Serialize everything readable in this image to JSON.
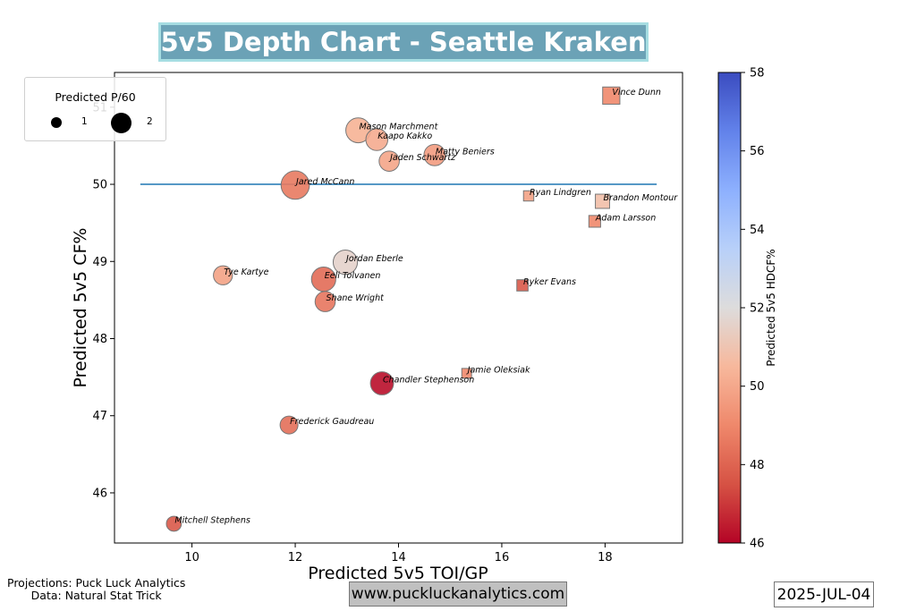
{
  "title": "5v5 Depth Chart - Seattle Kraken",
  "legend": {
    "title": "Predicted P/60",
    "entries": [
      {
        "label": "1",
        "value": 1
      },
      {
        "label": "2",
        "value": 2
      }
    ]
  },
  "footer": {
    "credit_line1": "Projections: Puck Luck Analytics",
    "credit_line2": "Data: Natural Stat Trick",
    "website": "www.puckluckanalytics.com",
    "date": "2025-JUL-04"
  },
  "chart_data": {
    "type": "scatter",
    "xlabel": "Predicted 5v5 TOI/GP",
    "ylabel": "Predicted 5v5 CF%",
    "colorbar_label": "Predicted 5v5 HDCF%",
    "xlim": [
      8.5,
      19.5
    ],
    "ylim": [
      45.35,
      51.45
    ],
    "xticks": [
      10,
      12,
      14,
      16,
      18
    ],
    "yticks": [
      46,
      47,
      48,
      49,
      50,
      51
    ],
    "colorbar_range": [
      46,
      58
    ],
    "colorbar_ticks": [
      46,
      48,
      50,
      52,
      54,
      56,
      58
    ],
    "colormap": "coolwarm",
    "reference_line": {
      "y": 50,
      "x_start": 9,
      "x_end": 19,
      "color": "#1f77b4"
    },
    "marker_legend": {
      "circle": "forward",
      "square": "defense"
    },
    "points": [
      {
        "name": "Vince Dunn",
        "x": 18.12,
        "y": 51.15,
        "hdcf": 49.0,
        "p60": 1.2,
        "marker": "square"
      },
      {
        "name": "Mason Marchment",
        "x": 13.22,
        "y": 50.7,
        "hdcf": 50.3,
        "p60": 1.6,
        "marker": "circle"
      },
      {
        "name": "Kaapo Kakko",
        "x": 13.58,
        "y": 50.58,
        "hdcf": 50.1,
        "p60": 1.35,
        "marker": "circle"
      },
      {
        "name": "Matty Beniers",
        "x": 14.7,
        "y": 50.38,
        "hdcf": 49.6,
        "p60": 1.3,
        "marker": "circle"
      },
      {
        "name": "Jaden Schwartz",
        "x": 13.82,
        "y": 50.3,
        "hdcf": 49.9,
        "p60": 1.2,
        "marker": "circle"
      },
      {
        "name": "Jared McCann",
        "x": 12.0,
        "y": 49.99,
        "hdcf": 48.6,
        "p60": 1.9,
        "marker": "circle"
      },
      {
        "name": "Ryan Lindgren",
        "x": 16.52,
        "y": 49.85,
        "hdcf": 49.8,
        "p60": 0.5,
        "marker": "square"
      },
      {
        "name": "Brandon Montour",
        "x": 17.95,
        "y": 49.78,
        "hdcf": 50.8,
        "p60": 0.9,
        "marker": "square"
      },
      {
        "name": "Adam Larsson",
        "x": 17.8,
        "y": 49.52,
        "hdcf": 49.0,
        "p60": 0.65,
        "marker": "square"
      },
      {
        "name": "Jordan Eberle",
        "x": 12.97,
        "y": 48.99,
        "hdcf": 51.6,
        "p60": 1.55,
        "marker": "circle"
      },
      {
        "name": "Tye Kartye",
        "x": 10.6,
        "y": 48.82,
        "hdcf": 49.8,
        "p60": 1.1,
        "marker": "circle"
      },
      {
        "name": "Eeli Tolvanen",
        "x": 12.55,
        "y": 48.77,
        "hdcf": 48.2,
        "p60": 1.55,
        "marker": "circle"
      },
      {
        "name": "Ryker Evans",
        "x": 16.4,
        "y": 48.69,
        "hdcf": 47.7,
        "p60": 0.6,
        "marker": "square"
      },
      {
        "name": "Shane Wright",
        "x": 12.58,
        "y": 48.48,
        "hdcf": 48.5,
        "p60": 1.2,
        "marker": "circle"
      },
      {
        "name": "Jamie Oleksiak",
        "x": 15.32,
        "y": 47.55,
        "hdcf": 49.0,
        "p60": 0.45,
        "marker": "square"
      },
      {
        "name": "Chandler Stephenson",
        "x": 13.68,
        "y": 47.42,
        "hdcf": 46.2,
        "p60": 1.45,
        "marker": "circle"
      },
      {
        "name": "Frederick Gaudreau",
        "x": 11.88,
        "y": 46.88,
        "hdcf": 48.3,
        "p60": 1.0,
        "marker": "circle"
      },
      {
        "name": "Mitchell Stephens",
        "x": 9.65,
        "y": 45.6,
        "hdcf": 47.7,
        "p60": 0.75,
        "marker": "circle"
      }
    ]
  }
}
